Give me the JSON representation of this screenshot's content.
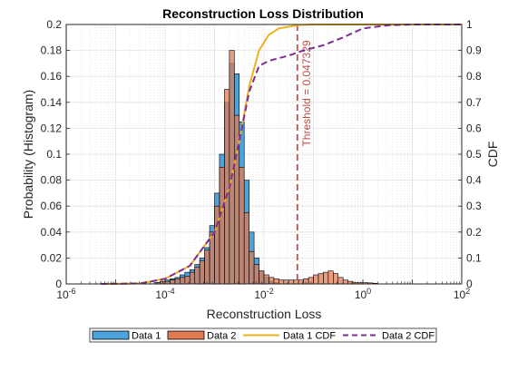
{
  "chart_data": {
    "type": "bar",
    "title": "Reconstruction Loss Distribution",
    "xlabel": "Reconstruction Loss",
    "ylabel_left": "Probability (Histogram)",
    "ylabel_right": "CDF",
    "x_scale": "log",
    "xlim": [
      1e-06,
      100
    ],
    "ylim_left": [
      0,
      0.2
    ],
    "ylim_right": [
      0,
      1
    ],
    "grid": true,
    "minor_grid": true,
    "x_ticks": [
      {
        "base": "10",
        "exp": "-6"
      },
      {
        "base": "10",
        "exp": "-4"
      },
      {
        "base": "10",
        "exp": "-2"
      },
      {
        "base": "10",
        "exp": "0"
      },
      {
        "base": "10",
        "exp": "2"
      }
    ],
    "y_ticks_left": [
      "0",
      "0.02",
      "0.04",
      "0.06",
      "0.08",
      "0.1",
      "0.12",
      "0.14",
      "0.16",
      "0.18",
      "0.2"
    ],
    "y_ticks_right": [
      "0",
      "0.1",
      "0.2",
      "0.3",
      "0.4",
      "0.5",
      "0.6",
      "0.7",
      "0.8",
      "0.9",
      "1"
    ],
    "bin_log10_start": -4.2,
    "bin_log10_width": 0.1,
    "series": [
      {
        "name": "Data 1",
        "kind": "histogram",
        "color": "#4DA3DB",
        "values": [
          0.001,
          0.002,
          0.003,
          0.004,
          0.005,
          0.007,
          0.009,
          0.011,
          0.015,
          0.02,
          0.028,
          0.045,
          0.07,
          0.1,
          0.14,
          0.17,
          0.162,
          0.125,
          0.08,
          0.04,
          0.02,
          0.01,
          0.005,
          0.002,
          0.001
        ]
      },
      {
        "name": "Data 2",
        "kind": "histogram",
        "color": "#E07B54",
        "values": [
          0.001,
          0.002,
          0.002,
          0.003,
          0.004,
          0.005,
          0.006,
          0.009,
          0.013,
          0.018,
          0.026,
          0.04,
          0.06,
          0.09,
          0.15,
          0.18,
          0.13,
          0.09,
          0.055,
          0.025,
          0.015,
          0.01,
          0.007,
          0.005,
          0.004,
          0.003,
          0.003,
          0.003,
          0.003,
          0.003,
          0.004,
          0.005,
          0.007,
          0.008,
          0.009,
          0.01,
          0.008,
          0.005,
          0.003,
          0.002,
          0.001,
          0.001,
          0.001,
          0.0008,
          0.0005
        ]
      },
      {
        "name": "Data 1 CDF",
        "kind": "cdf",
        "style": "solid",
        "color": "#EDB120",
        "points": [
          [
            -5.2,
            0
          ],
          [
            -4.5,
            0.002
          ],
          [
            -4,
            0.02
          ],
          [
            -3.5,
            0.07
          ],
          [
            -3,
            0.2
          ],
          [
            -2.7,
            0.37
          ],
          [
            -2.5,
            0.55
          ],
          [
            -2.3,
            0.76
          ],
          [
            -2.1,
            0.9
          ],
          [
            -1.9,
            0.96
          ],
          [
            -1.7,
            0.985
          ],
          [
            -1.3,
            0.998
          ],
          [
            -1,
            1
          ],
          [
            2,
            1
          ]
        ]
      },
      {
        "name": "Data 2 CDF",
        "kind": "cdf",
        "style": "dashed",
        "color": "#7E2F8E",
        "points": [
          [
            -5.3,
            0
          ],
          [
            -4.5,
            0.002
          ],
          [
            -4,
            0.02
          ],
          [
            -3.5,
            0.07
          ],
          [
            -3,
            0.2
          ],
          [
            -2.7,
            0.37
          ],
          [
            -2.5,
            0.55
          ],
          [
            -2.3,
            0.74
          ],
          [
            -2.1,
            0.84
          ],
          [
            -1.9,
            0.86
          ],
          [
            -1.5,
            0.88
          ],
          [
            -1.2,
            0.9
          ],
          [
            -0.8,
            0.92
          ],
          [
            -0.4,
            0.95
          ],
          [
            0,
            0.985
          ],
          [
            0.5,
            0.997
          ],
          [
            1,
            1
          ],
          [
            2,
            1
          ]
        ]
      }
    ],
    "threshold": {
      "value": 0.047329,
      "label": "Threshold = 0.047329",
      "color": "#C0504D"
    },
    "legend": {
      "placement": "bottom-outside",
      "entries": [
        "Data 1",
        "Data 2",
        "Data 1 CDF",
        "Data 2 CDF"
      ]
    }
  }
}
